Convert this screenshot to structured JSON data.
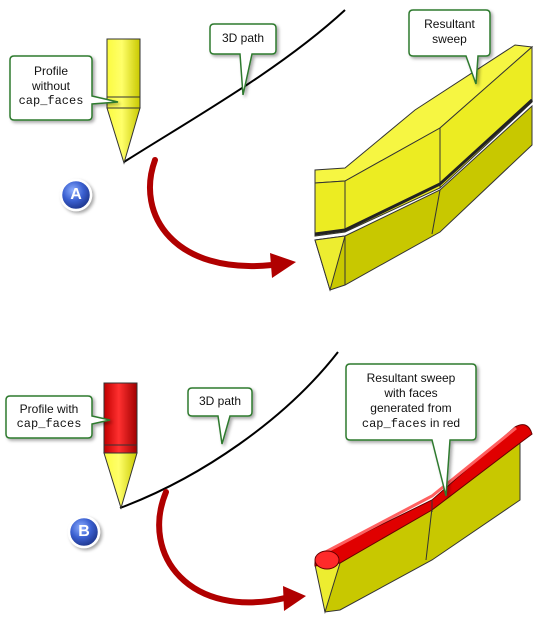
{
  "colors": {
    "yellow": "#f2f200",
    "yellow_dark": "#c8c800",
    "red": "#e00000",
    "arrow_red": "#b00000",
    "badge_blue": "#2a4fb0",
    "callout_border": "#2f7a2f",
    "callout_fill": "#ffffff"
  },
  "panel_a": {
    "badge": "A",
    "profile_callout": {
      "line1": "Profile",
      "line2": "without",
      "line3": "cap_faces"
    },
    "path_callout": "3D path",
    "sweep_callout": {
      "line1": "Resultant",
      "line2": "sweep"
    }
  },
  "panel_b": {
    "badge": "B",
    "profile_callout": {
      "line1": "Profile with",
      "line2": "cap_faces"
    },
    "path_callout": "3D path",
    "sweep_callout": {
      "line1": "Resultant sweep",
      "line2": "with faces",
      "line3": "generated from",
      "line4_code": "cap_faces",
      "line4_rest": " in red"
    }
  }
}
